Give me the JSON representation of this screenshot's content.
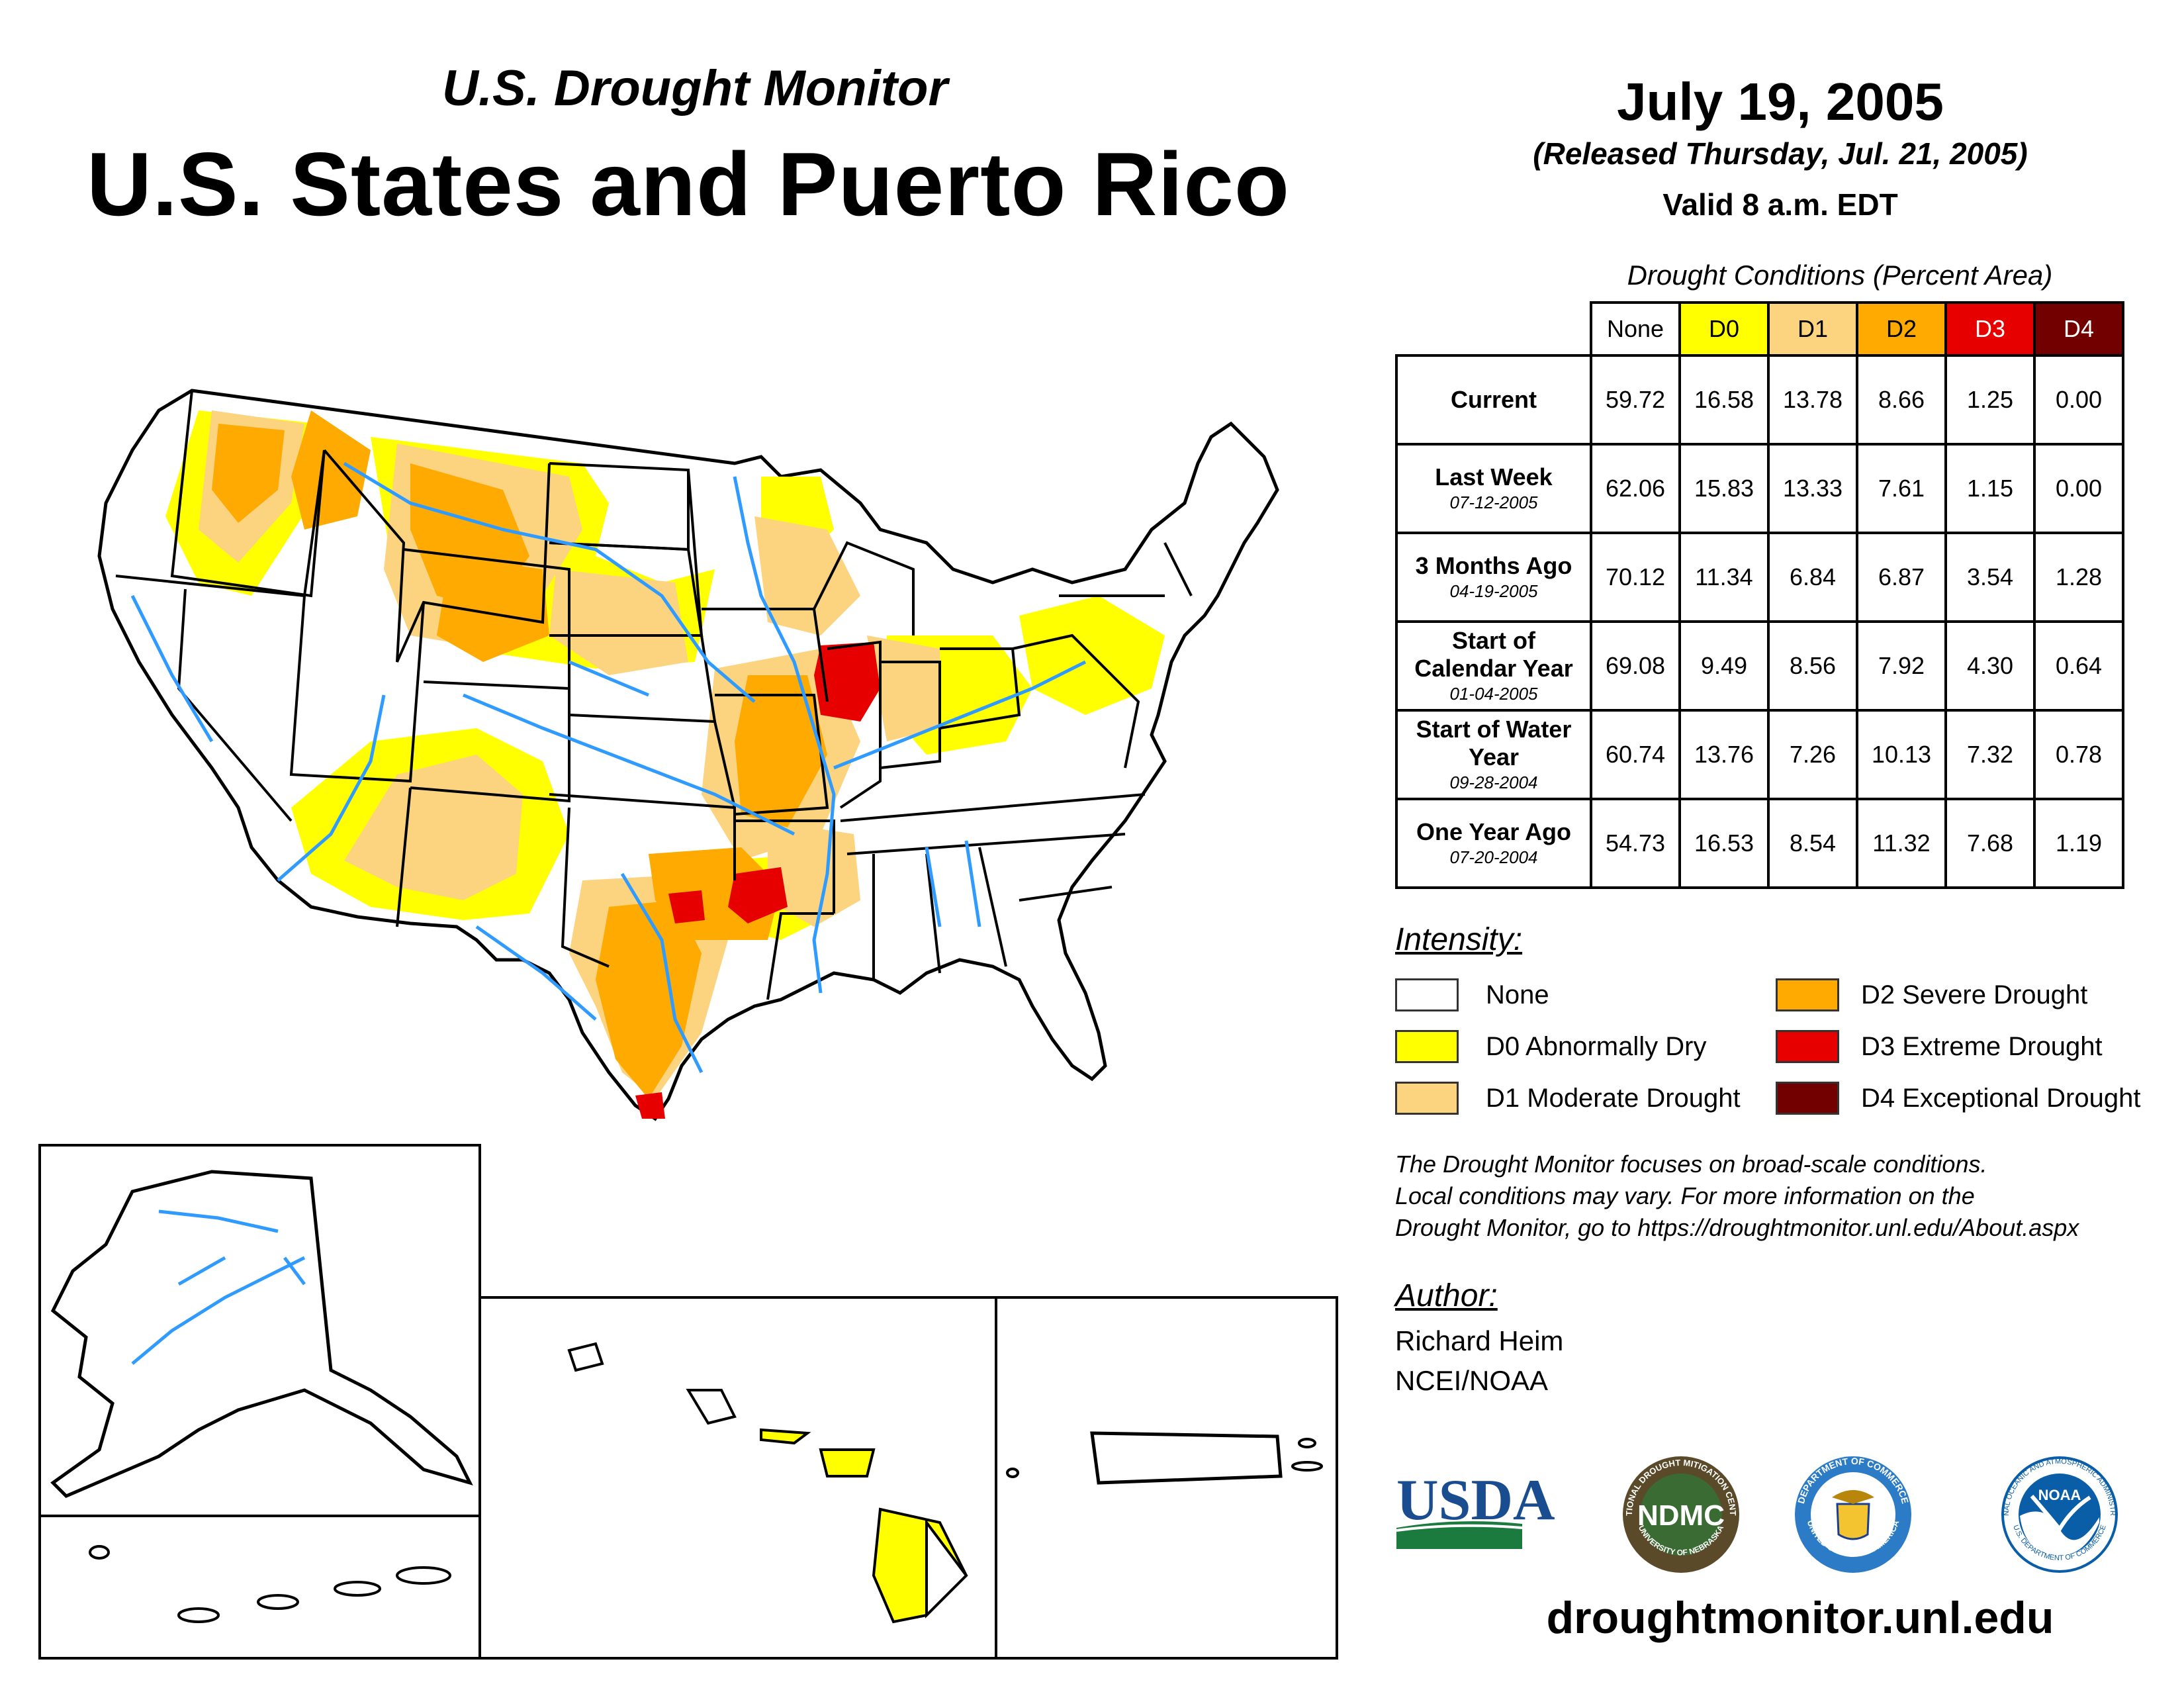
{
  "header": {
    "subtitle": "U.S. Drought Monitor",
    "title": "U.S. States and Puerto Rico",
    "date": "July 19, 2005",
    "released": "(Released Thursday, Jul. 21, 2005)",
    "valid": "Valid 8 a.m. EDT"
  },
  "conditions_table": {
    "title": "Drought Conditions (Percent Area)",
    "columns": [
      "None",
      "D0",
      "D1",
      "D2",
      "D3",
      "D4"
    ],
    "column_colors": [
      "#ffffff",
      "#ffff00",
      "#fcd37f",
      "#ffaa00",
      "#e60000",
      "#730000"
    ],
    "rows": [
      {
        "label": "Current",
        "date": "",
        "values": [
          "59.72",
          "16.58",
          "13.78",
          "8.66",
          "1.25",
          "0.00"
        ]
      },
      {
        "label": "Last Week",
        "date": "07-12-2005",
        "values": [
          "62.06",
          "15.83",
          "13.33",
          "7.61",
          "1.15",
          "0.00"
        ]
      },
      {
        "label": "3 Months Ago",
        "date": "04-19-2005",
        "values": [
          "70.12",
          "11.34",
          "6.84",
          "6.87",
          "3.54",
          "1.28"
        ]
      },
      {
        "label": "Start of Calendar Year",
        "date": "01-04-2005",
        "values": [
          "69.08",
          "9.49",
          "8.56",
          "7.92",
          "4.30",
          "0.64"
        ]
      },
      {
        "label": "Start of Water Year",
        "date": "09-28-2004",
        "values": [
          "60.74",
          "13.76",
          "7.26",
          "10.13",
          "7.32",
          "0.78"
        ]
      },
      {
        "label": "One Year Ago",
        "date": "07-20-2004",
        "values": [
          "54.73",
          "16.53",
          "8.54",
          "11.32",
          "7.68",
          "1.19"
        ]
      }
    ]
  },
  "legend": {
    "title": "Intensity:",
    "items": [
      {
        "label": "None",
        "color": "#ffffff"
      },
      {
        "label": "D0 Abnormally Dry",
        "color": "#ffff00"
      },
      {
        "label": "D1 Moderate Drought",
        "color": "#fcd37f"
      },
      {
        "label": "D2 Severe Drought",
        "color": "#ffaa00"
      },
      {
        "label": "D3 Extreme Drought",
        "color": "#e60000"
      },
      {
        "label": "D4 Exceptional Drought",
        "color": "#730000"
      }
    ]
  },
  "note": {
    "line1": "The Drought Monitor focuses on broad-scale conditions.",
    "line2": "Local conditions may vary. For more information on the",
    "line3": "Drought Monitor, go to https://droughtmonitor.unl.edu/About.aspx"
  },
  "author": {
    "title": "Author:",
    "name": "Richard Heim",
    "org": "NCEI/NOAA"
  },
  "logos": {
    "usda": "USDA",
    "ndmc": "NDMC",
    "ndmc_ring": "NATIONAL DROUGHT MITIGATION CENTER",
    "ndmc_ring_bottom": "UNIVERSITY OF NEBRASKA",
    "commerce_ring": "DEPARTMENT OF COMMERCE",
    "commerce_ring_bottom": "UNITED STATES OF AMERICA",
    "noaa": "NOAA",
    "noaa_ring": "NATIONAL OCEANIC AND ATMOSPHERIC ADMINISTRATION",
    "noaa_ring_bottom": "U.S. DEPARTMENT OF COMMERCE"
  },
  "footer": {
    "url": "droughtmonitor.unl.edu"
  },
  "colors": {
    "water": "#2f9bff",
    "usda_blue": "#1a4d8f",
    "usda_green": "#1b7a3e",
    "ndmc_dark": "#5a4a2a",
    "ndmc_green": "#3a6b33",
    "commerce_blue": "#2b7bc6",
    "noaa_blue": "#0a5ea8"
  }
}
